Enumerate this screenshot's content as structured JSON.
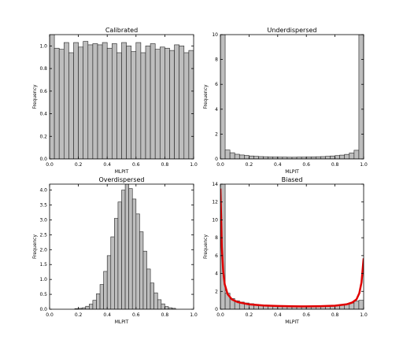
{
  "colors": {
    "bar_fill": "#bdbdbd",
    "bar_stroke": "#222222",
    "axis": "#000000",
    "fit_curve": "#e00000"
  },
  "chart_data": [
    {
      "type": "bar",
      "title": "Calibrated",
      "xlabel": "MLPIT",
      "ylabel": "Frequency",
      "xlim": [
        0.0,
        1.0
      ],
      "ylim": [
        0.0,
        1.1
      ],
      "xticks": [
        "0.0",
        "0.2",
        "0.4",
        "0.6",
        "0.8",
        "1.0"
      ],
      "yticks": [
        "0.0",
        "0.2",
        "0.4",
        "0.6",
        "0.8",
        "1.0"
      ],
      "bin_width": 0.03333,
      "values": [
        1.11,
        0.98,
        0.97,
        1.03,
        0.94,
        1.03,
        0.99,
        1.04,
        1.01,
        1.02,
        1.01,
        1.03,
        0.98,
        1.02,
        0.94,
        1.03,
        1.0,
        0.95,
        1.03,
        0.94,
        1.0,
        1.02,
        0.97,
        0.99,
        0.98,
        0.96,
        1.01,
        1.0,
        0.94,
        0.96
      ],
      "grid": false
    },
    {
      "type": "bar",
      "title": "Underdispersed",
      "xlabel": "MLPIT",
      "ylabel": "Frequency",
      "xlim": [
        0.0,
        1.0
      ],
      "ylim": [
        0,
        10
      ],
      "xticks": [
        "0.0",
        "0.2",
        "0.4",
        "0.6",
        "0.8",
        "1.0"
      ],
      "yticks": [
        "0",
        "2",
        "4",
        "6",
        "8",
        "10"
      ],
      "bin_width": 0.03333,
      "values": [
        10.0,
        0.72,
        0.5,
        0.38,
        0.32,
        0.28,
        0.24,
        0.21,
        0.19,
        0.18,
        0.17,
        0.16,
        0.15,
        0.15,
        0.14,
        0.14,
        0.15,
        0.15,
        0.16,
        0.17,
        0.18,
        0.19,
        0.21,
        0.24,
        0.27,
        0.31,
        0.37,
        0.48,
        0.7,
        10.0
      ],
      "grid": false
    },
    {
      "type": "bar",
      "title": "Overdispersed",
      "xlabel": "MLPIT",
      "ylabel": "Frequency",
      "xlim": [
        0.0,
        1.0
      ],
      "ylim": [
        0.0,
        4.2
      ],
      "xticks": [
        "0.0",
        "0.2",
        "0.4",
        "0.6",
        "0.8",
        "1.0"
      ],
      "yticks": [
        "0.0",
        "0.5",
        "1.0",
        "1.5",
        "2.0",
        "2.5",
        "3.0",
        "3.5",
        "4.0"
      ],
      "bin_start": 0.175,
      "bin_width": 0.025,
      "values": [
        0.02,
        0.03,
        0.05,
        0.1,
        0.17,
        0.3,
        0.52,
        0.83,
        1.27,
        1.8,
        2.43,
        3.05,
        3.6,
        4.0,
        4.2,
        4.05,
        3.7,
        3.2,
        2.6,
        1.95,
        1.35,
        0.88,
        0.55,
        0.32,
        0.18,
        0.09,
        0.05,
        0.03
      ],
      "grid": false
    },
    {
      "type": "bar",
      "title": "Biased",
      "xlabel": "MLPIT",
      "ylabel": "Frequency",
      "xlim": [
        0.0,
        1.0
      ],
      "ylim": [
        0,
        14
      ],
      "xticks": [
        "0.0",
        "0.2",
        "0.4",
        "0.6",
        "0.8",
        "1.0"
      ],
      "yticks": [
        "0",
        "2",
        "4",
        "6",
        "8",
        "10",
        "12",
        "14"
      ],
      "bin_width": 0.03333,
      "values": [
        14.0,
        1.8,
        1.2,
        0.95,
        0.8,
        0.7,
        0.62,
        0.55,
        0.5,
        0.46,
        0.42,
        0.4,
        0.38,
        0.36,
        0.35,
        0.34,
        0.33,
        0.33,
        0.33,
        0.34,
        0.35,
        0.36,
        0.38,
        0.41,
        0.45,
        0.5,
        0.58,
        0.7,
        0.9,
        1.0
      ],
      "curve": {
        "x": [
          0.0,
          0.005,
          0.01,
          0.02,
          0.03,
          0.05,
          0.08,
          0.12,
          0.2,
          0.3,
          0.4,
          0.5,
          0.6,
          0.7,
          0.8,
          0.88,
          0.92,
          0.95,
          0.97,
          0.985,
          0.995,
          1.0
        ],
        "y": [
          13.5,
          10.5,
          7.0,
          4.2,
          2.8,
          1.7,
          1.1,
          0.8,
          0.55,
          0.42,
          0.36,
          0.33,
          0.32,
          0.34,
          0.4,
          0.55,
          0.75,
          1.1,
          1.8,
          3.0,
          4.8,
          5.7
        ]
      },
      "grid": false
    }
  ]
}
